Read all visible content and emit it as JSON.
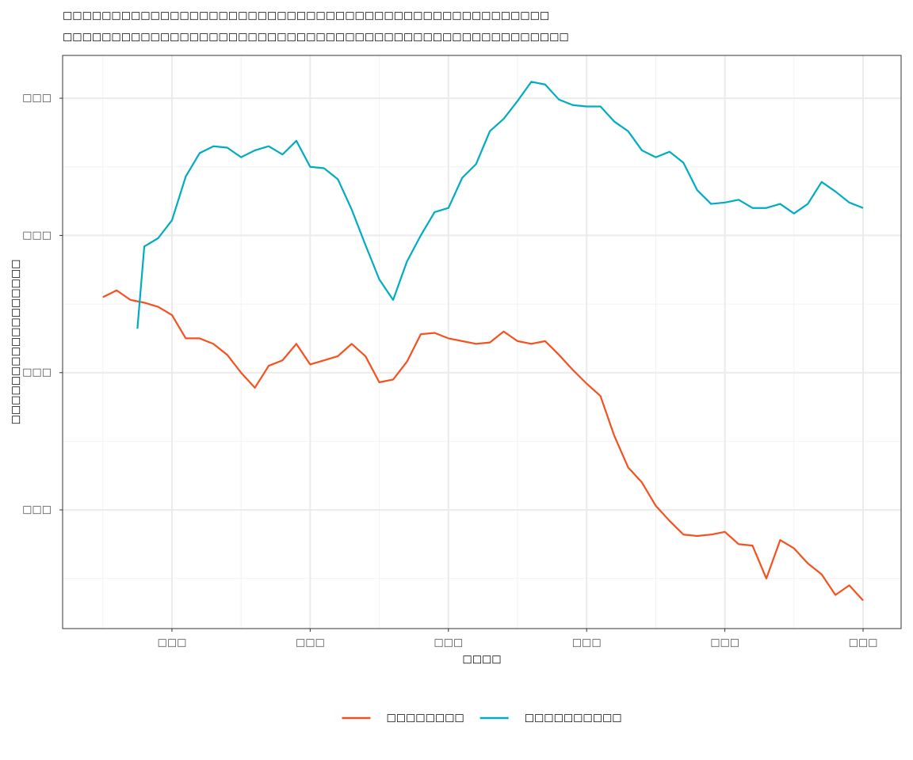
{
  "chart_data": {
    "type": "line",
    "title": "□□□□□□□□□□□□□□□□□□□□□□□□□□□□□□□□□□□□□□□□□□□□□□□□□□",
    "subtitle": "□□□□□□□□□□□□□□□□□□□□□□□□□□□□□□□□□□□□□□□□□□□□□□□□□□□□",
    "x_label": "□□□□",
    "y_label": "□□□□□□□□□□□□□□□□□",
    "x": [
      5,
      6,
      7,
      7.5,
      8,
      9,
      10,
      11,
      12,
      13,
      14,
      15,
      16,
      17,
      18,
      19,
      20,
      21,
      22,
      23,
      24,
      25,
      26,
      27,
      28,
      29,
      30,
      31,
      32,
      33,
      34,
      35,
      36,
      37,
      38,
      39,
      40,
      41,
      42,
      43,
      44,
      45,
      46,
      47,
      48,
      49,
      50,
      51,
      52,
      53,
      54,
      55,
      56,
      57,
      58,
      59,
      60
    ],
    "series": [
      {
        "name": "□□□□□□□□",
        "color": "#f4511e",
        "values": [
          25.5,
          26.0,
          25.3,
          25.2,
          25.1,
          24.8,
          24.2,
          22.5,
          22.5,
          22.1,
          21.3,
          20.0,
          18.9,
          20.5,
          20.9,
          22.1,
          20.6,
          20.9,
          21.2,
          22.1,
          21.2,
          19.3,
          19.5,
          20.8,
          22.8,
          22.9,
          22.5,
          22.3,
          22.1,
          22.2,
          23.0,
          22.3,
          22.1,
          22.3,
          21.3,
          20.2,
          19.2,
          18.3,
          15.4,
          13.1,
          12.0,
          10.3,
          9.2,
          8.2,
          8.1,
          8.2,
          8.4,
          7.5,
          7.4,
          5.0,
          7.8,
          7.2,
          6.1,
          5.3,
          3.8,
          4.5,
          3.4
        ]
      },
      {
        "name": "□□□□□□□□□□",
        "color": "#00acc1",
        "values": [
          null,
          null,
          null,
          23.2,
          29.2,
          29.8,
          31.1,
          34.3,
          36.0,
          36.5,
          36.4,
          35.7,
          36.2,
          36.5,
          35.9,
          36.9,
          35.0,
          34.9,
          34.1,
          31.9,
          29.3,
          26.8,
          25.3,
          28.1,
          30.0,
          31.7,
          32.0,
          34.2,
          35.2,
          37.6,
          38.5,
          39.8,
          41.2,
          41.0,
          39.9,
          39.5,
          39.4,
          39.4,
          38.3,
          37.6,
          36.2,
          35.7,
          36.1,
          35.3,
          33.3,
          32.3,
          32.4,
          32.6,
          32.0,
          32.0,
          32.3,
          31.6,
          32.3,
          33.9,
          33.2,
          32.4,
          32.0
        ]
      }
    ],
    "xlim": [
      2.09,
      62.75
    ],
    "ylim": [
      1.35,
      43.12
    ],
    "xticks": [
      {
        "value": 10,
        "label": "□□□"
      },
      {
        "value": 20,
        "label": "□□□"
      },
      {
        "value": 30,
        "label": "□□□"
      },
      {
        "value": 40,
        "label": "□□□"
      },
      {
        "value": 50,
        "label": "□□□"
      },
      {
        "value": 60,
        "label": "□□□"
      }
    ],
    "yticks": [
      {
        "value": 10,
        "label": "□□□"
      },
      {
        "value": 20,
        "label": "□□□"
      },
      {
        "value": 30,
        "label": "□□□"
      },
      {
        "value": 40,
        "label": "□□□"
      }
    ],
    "grid": true,
    "legend": "bottom"
  }
}
